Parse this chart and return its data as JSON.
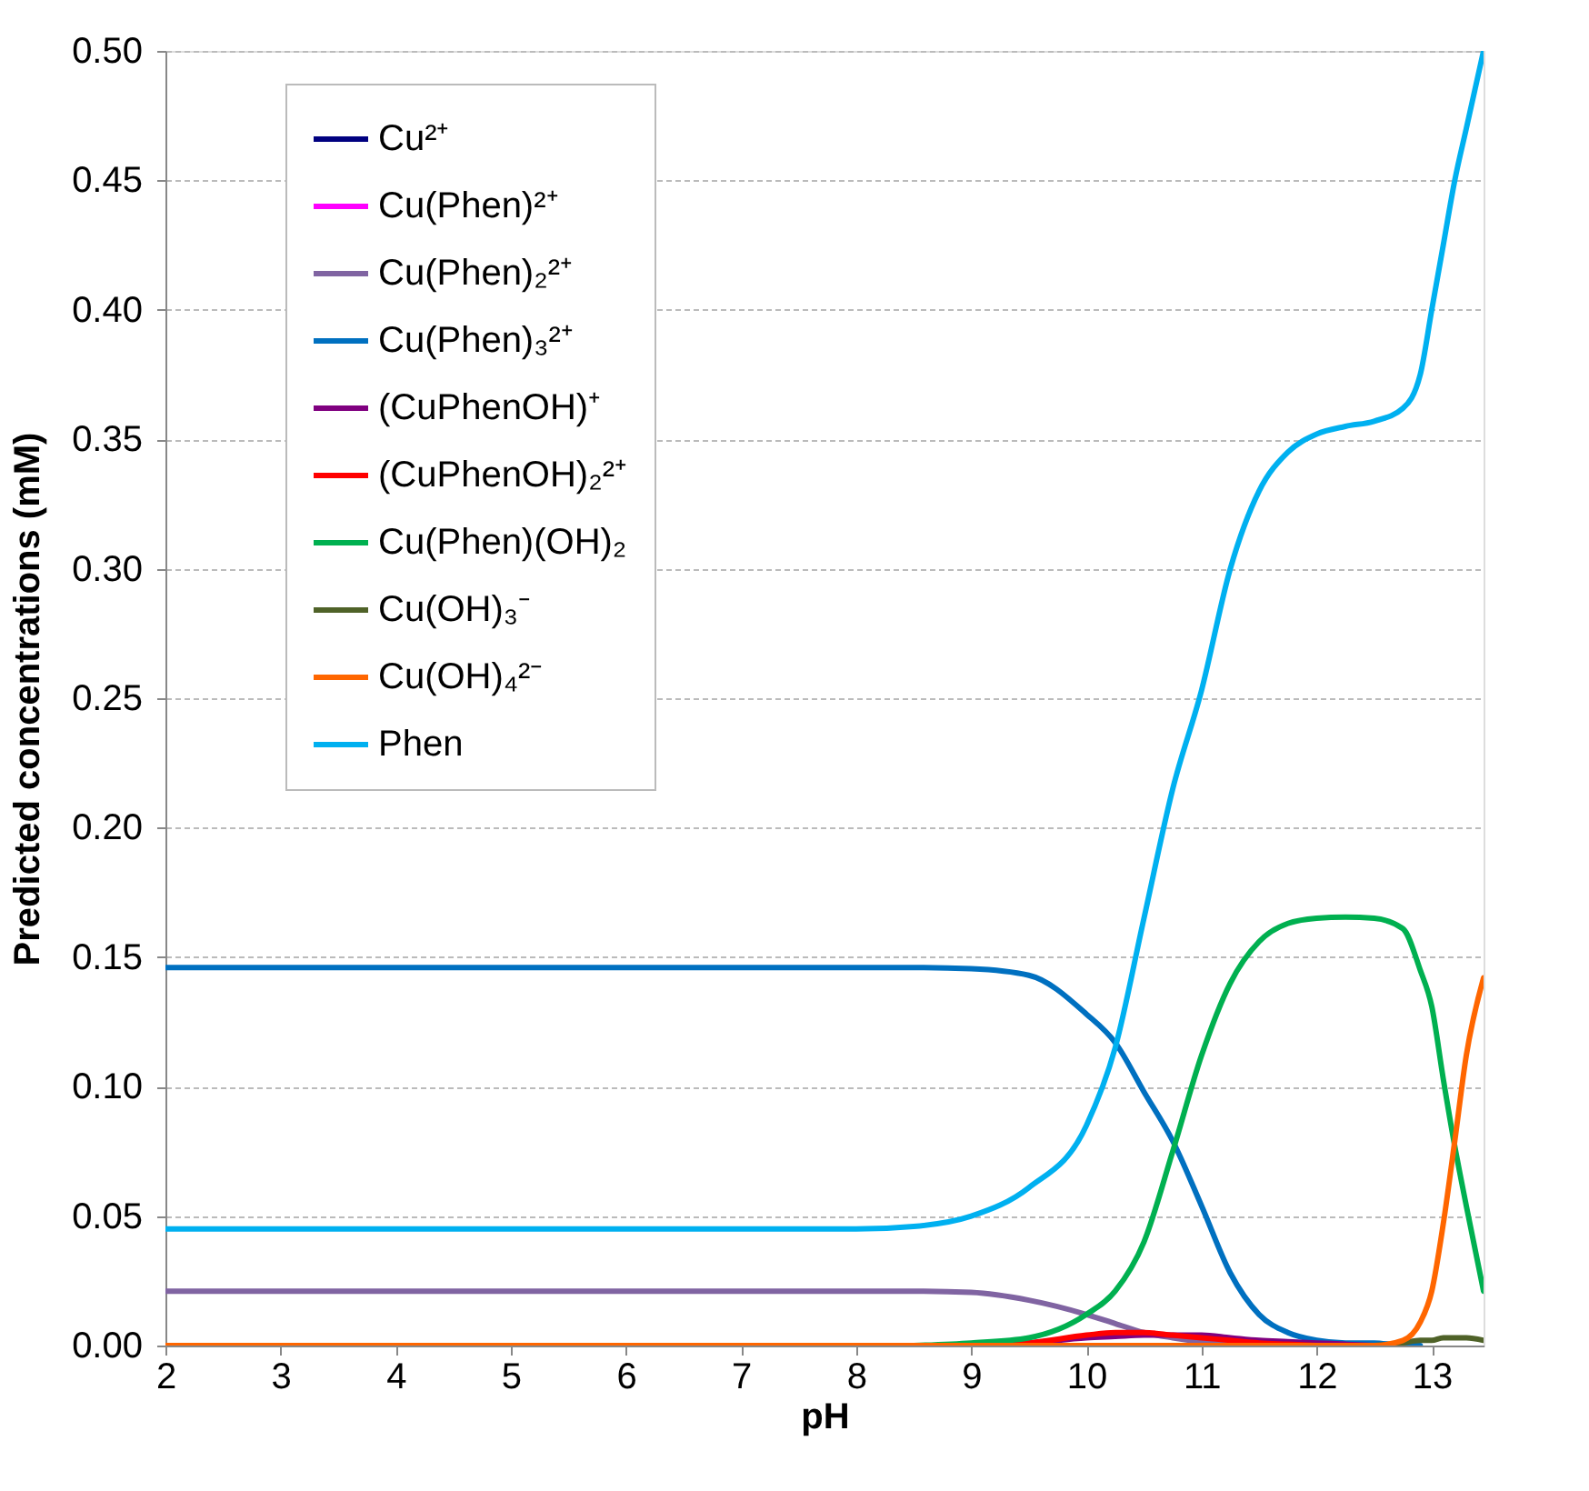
{
  "chart_data": {
    "type": "line",
    "xlabel": "pH",
    "ylabel": "Predicted concentrations  (mM)",
    "x": [
      2,
      3,
      4,
      5,
      6,
      7,
      8,
      8.5,
      9,
      9.5,
      10,
      10.25,
      10.5,
      10.75,
      11,
      11.25,
      11.5,
      11.75,
      12,
      12.25,
      12.5,
      12.75,
      12.9,
      13,
      13.1,
      13.2,
      13.3,
      13.45
    ],
    "xlim": [
      2,
      13.45
    ],
    "xticks": [
      2,
      3,
      4,
      5,
      6,
      7,
      8,
      9,
      10,
      11,
      12,
      13
    ],
    "ylim": [
      0,
      0.5
    ],
    "yticks": [
      {
        "value": 0,
        "label": "0.00"
      },
      {
        "value": 0.05,
        "label": "0.05"
      },
      {
        "value": 0.1,
        "label": "0.10"
      },
      {
        "value": 0.15,
        "label": "0.15"
      },
      {
        "value": 0.2,
        "label": "0.20"
      },
      {
        "value": 0.25,
        "label": "0.25"
      },
      {
        "value": 0.3,
        "label": "0.30"
      },
      {
        "value": 0.35,
        "label": "0.35"
      },
      {
        "value": 0.4,
        "label": "0.40"
      },
      {
        "value": 0.45,
        "label": "0.45"
      },
      {
        "value": 0.5,
        "label": "0.50"
      }
    ],
    "grid": "y",
    "legend": "top left",
    "marker": "none",
    "line_style": "solid",
    "series": [
      {
        "name": "Cu²⁺",
        "color": "#000080",
        "values": [
          null,
          null,
          null,
          null,
          null,
          null,
          null,
          null,
          null,
          null,
          null,
          null,
          null,
          null,
          null,
          null,
          null,
          null,
          null,
          null,
          null,
          null,
          null,
          null,
          null,
          null,
          null,
          null
        ]
      },
      {
        "name": "Cu(Phen)²⁺",
        "color": "#ff00ff",
        "values": [
          null,
          null,
          null,
          null,
          null,
          null,
          null,
          null,
          null,
          null,
          null,
          null,
          null,
          null,
          null,
          null,
          null,
          null,
          null,
          null,
          null,
          null,
          null,
          null,
          null,
          null,
          null,
          null
        ]
      },
      {
        "name": "Cu(Phen)₂²⁺",
        "color": "#8064a2",
        "values": [
          0.021,
          0.021,
          0.021,
          0.021,
          0.021,
          0.021,
          0.021,
          0.021,
          0.0205,
          0.0175,
          0.012,
          0.0085,
          0.005,
          0.003,
          0.0015,
          0.001,
          0.0005,
          0,
          null,
          null,
          null,
          null,
          null,
          null,
          null,
          null,
          null,
          null
        ]
      },
      {
        "name": "Cu(Phen)₃²⁺",
        "color": "#0070c0",
        "values": [
          0.146,
          0.146,
          0.146,
          0.146,
          0.146,
          0.146,
          0.146,
          0.146,
          0.1455,
          0.143,
          0.128,
          0.117,
          0.098,
          0.079,
          0.054,
          0.028,
          0.012,
          0.005,
          0.002,
          0.001,
          0.001,
          0,
          0,
          null,
          null,
          null,
          null,
          null
        ]
      },
      {
        "name": "(CuPhenOH)⁺",
        "color": "#800080",
        "values": [
          null,
          null,
          null,
          null,
          null,
          null,
          null,
          null,
          0,
          0.001,
          0.003,
          0.0035,
          0.004,
          0.004,
          0.004,
          0.003,
          0.002,
          0.0015,
          0.001,
          0.0005,
          0,
          null,
          null,
          null,
          null,
          null,
          null,
          null
        ]
      },
      {
        "name": "(CuPhenOH)₂²⁺",
        "color": "#ff0000",
        "values": [
          null,
          null,
          null,
          null,
          null,
          null,
          null,
          null,
          0,
          0.001,
          0.004,
          0.005,
          0.005,
          0.004,
          0.003,
          0.002,
          0.001,
          0.0005,
          0,
          null,
          null,
          null,
          null,
          null,
          null,
          null,
          null,
          null
        ]
      },
      {
        "name": "Cu(Phen)(OH)₂",
        "color": "#00b050",
        "values": [
          null,
          null,
          null,
          null,
          null,
          null,
          null,
          0,
          0.001,
          0.003,
          0.012,
          0.021,
          0.04,
          0.075,
          0.112,
          0.14,
          0.156,
          0.163,
          0.165,
          0.1655,
          0.165,
          0.161,
          0.145,
          0.131,
          0.103,
          0.077,
          0.054,
          0.021
        ]
      },
      {
        "name": "Cu(OH)₃⁻",
        "color": "#4f6228",
        "values": [
          null,
          null,
          null,
          null,
          null,
          null,
          null,
          null,
          null,
          null,
          null,
          null,
          null,
          null,
          null,
          null,
          null,
          null,
          null,
          null,
          0,
          0.001,
          0.002,
          0.002,
          0.003,
          0.003,
          0.003,
          0.002
        ]
      },
      {
        "name": "Cu(OH)₄²⁻",
        "color": "#ff6600",
        "values": [
          0,
          0,
          0,
          0,
          0,
          0,
          0,
          0,
          0,
          0,
          0,
          0,
          0,
          0,
          0,
          0,
          0,
          0,
          0,
          0,
          0,
          0.002,
          0.009,
          0.021,
          0.047,
          0.079,
          0.112,
          0.142
        ]
      },
      {
        "name": "Phen",
        "color": "#00b0f0",
        "values": [
          0.045,
          0.045,
          0.045,
          0.045,
          0.045,
          0.045,
          0.045,
          0.046,
          0.05,
          0.061,
          0.085,
          0.115,
          0.165,
          0.215,
          0.253,
          0.3,
          0.33,
          0.345,
          0.352,
          0.355,
          0.357,
          0.362,
          0.375,
          0.4,
          0.425,
          0.45,
          0.47,
          0.5
        ]
      }
    ]
  }
}
